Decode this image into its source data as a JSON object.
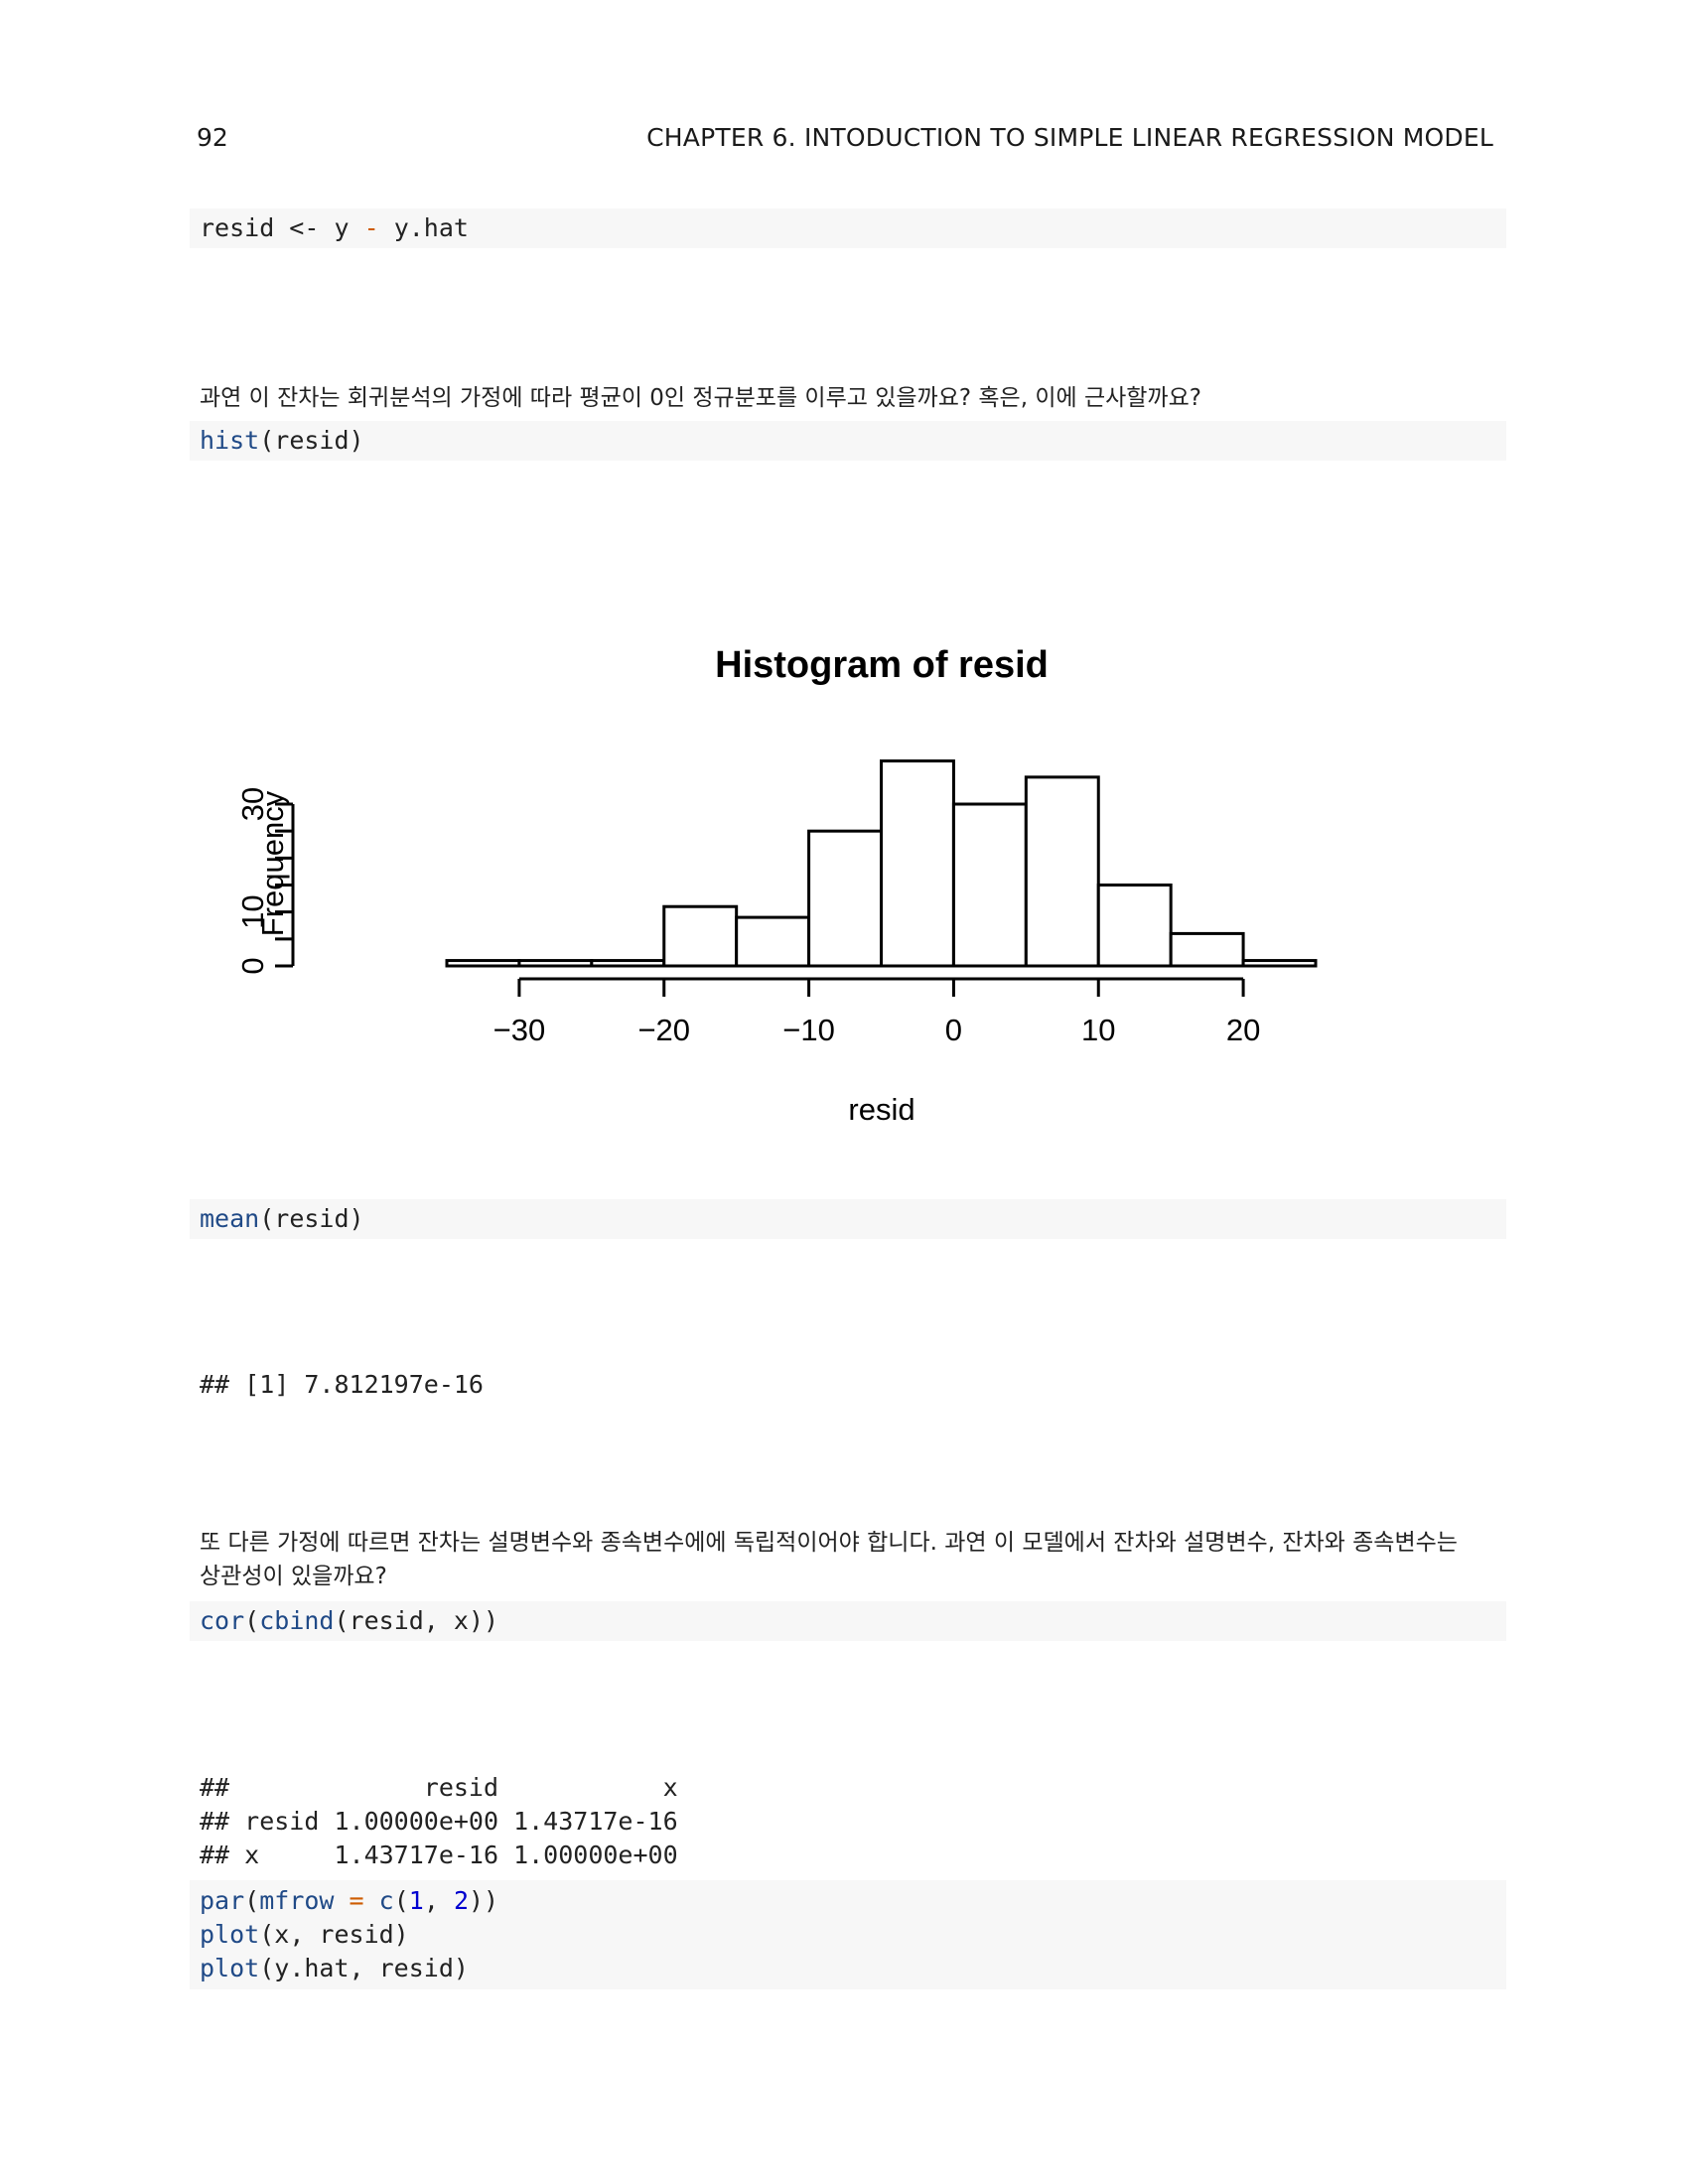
{
  "header": {
    "page_number": "92",
    "chapter_title": "CHAPTER 6.  INTODUCTION TO SIMPLE LINEAR REGRESSION MODEL"
  },
  "code1": {
    "a": "resid <- y ",
    "op": "-",
    "b": " y.hat"
  },
  "para1": "과연 이 잔차는 회귀분석의 가정에 따라 평균이 0인 정규분포를 이루고 있을까요? 혹은, 이에 근사할까요?",
  "code2": {
    "fn": "hist",
    "rest": "(resid)"
  },
  "code3": {
    "fn": "mean",
    "rest": "(resid)"
  },
  "output1": "## [1] 7.812197e-16",
  "para2": {
    "line1": "또 다른 가정에 따르면 잔차는 설명변수와 종속변수에에 독립적이어야 합니다. 과연 이 모델에서 잔차와 설명변수, 잔차와 종속변수는",
    "line2": "상관성이 있을까요?"
  },
  "code4": {
    "fn1": "cor",
    "p1": "(",
    "fn2": "cbind",
    "rest": "(resid, x))"
  },
  "output2": [
    "##             resid           x",
    "## resid 1.00000e+00 1.43717e-16",
    "## x     1.43717e-16 1.00000e+00"
  ],
  "code5": {
    "l1": {
      "fn": "par",
      "p1": "(",
      "arg": "mfrow",
      "eq": " = ",
      "c": "c",
      "p2": "(",
      "n1": "1",
      "comma": ", ",
      "n2": "2",
      "p3": "))"
    },
    "l2": {
      "fn": "plot",
      "rest": "(x, resid)"
    },
    "l3": {
      "fn": "plot",
      "rest": "(y.hat, resid)"
    }
  },
  "chart_data": {
    "type": "bar",
    "title": "Histogram of resid",
    "xlabel": "resid",
    "ylabel": "Frequency",
    "bin_edges": [
      -35,
      -30,
      -25,
      -20,
      -15,
      -10,
      -5,
      0,
      5,
      10,
      15,
      20,
      25
    ],
    "values": [
      1,
      1,
      1,
      11,
      9,
      25,
      38,
      30,
      35,
      15,
      6,
      1
    ],
    "xlim": [
      -35,
      25
    ],
    "ylim": [
      0,
      38
    ],
    "x_ticks": [
      -30,
      -20,
      -10,
      0,
      10,
      20
    ],
    "x_tick_labels": [
      "−30",
      "−20",
      "−10",
      "0",
      "10",
      "20"
    ],
    "y_ticks": [
      0,
      5,
      10,
      15,
      20,
      25,
      30
    ],
    "y_tick_labels": [
      "0",
      "",
      "10",
      "",
      "",
      "",
      "30"
    ],
    "grid": false,
    "legend": "none"
  }
}
